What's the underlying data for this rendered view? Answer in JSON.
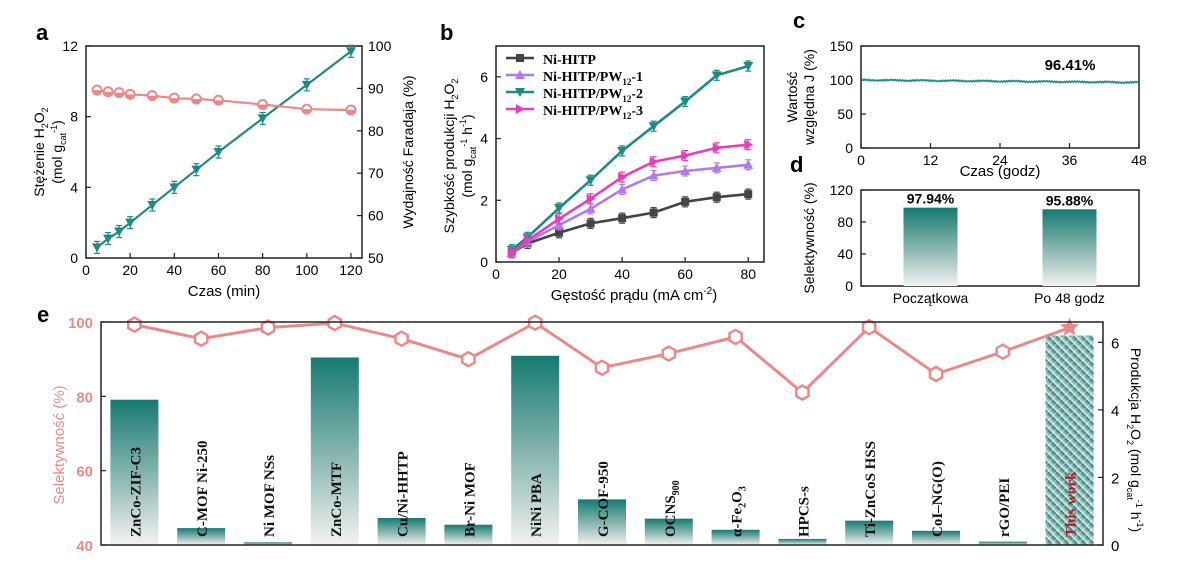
{
  "colors": {
    "teal": "#1e8a82",
    "pink": "#e88a8a",
    "gray": "#444444",
    "purple": "#b07ae8",
    "magenta": "#e63fb8",
    "darkred": "#b0202a"
  },
  "panels": {
    "a": "a",
    "b": "b",
    "c": "c",
    "d": "d",
    "e": "e"
  },
  "chart_data": [
    {
      "id": "a",
      "type": "line",
      "xlabel": "Czas (min)",
      "ylabel_line1": "Stężenie H",
      "ylabel_line2": "(mol g",
      "y2label": "Wydajność Faradaja (%)",
      "xlim": [
        0,
        125
      ],
      "ylim": [
        0,
        12
      ],
      "y2lim": [
        50,
        100
      ],
      "xticks": [
        0,
        20,
        40,
        60,
        80,
        100,
        120
      ],
      "yticks": [
        0,
        4,
        8,
        12
      ],
      "y2ticks": [
        50,
        60,
        70,
        80,
        90,
        100
      ],
      "series": [
        {
          "axis": "left",
          "color": "#1e8a82",
          "x": [
            5,
            10,
            15,
            20,
            30,
            40,
            50,
            60,
            80,
            100,
            120
          ],
          "y": [
            0.6,
            1.1,
            1.5,
            2.0,
            3.0,
            4.0,
            5.0,
            6.0,
            7.9,
            9.8,
            11.7
          ]
        },
        {
          "axis": "right",
          "color": "#e88a8a",
          "x": [
            5,
            10,
            15,
            20,
            30,
            40,
            50,
            60,
            80,
            100,
            120
          ],
          "y": [
            89.6,
            89.2,
            89.0,
            88.6,
            88.3,
            87.7,
            87.5,
            87.2,
            86.2,
            85.1,
            84.9
          ]
        }
      ]
    },
    {
      "id": "b",
      "type": "line",
      "xlabel": "Gęstość prądu (mA cm",
      "xlabel_sup": "-2",
      "ylabel_line1": "Szybkość produkcji H",
      "ylabel_line2": "(mol g",
      "xlim": [
        0,
        85
      ],
      "ylim": [
        0,
        7
      ],
      "xticks": [
        0,
        20,
        40,
        60,
        80
      ],
      "yticks": [
        0,
        2,
        4,
        6
      ],
      "x": [
        5,
        10,
        20,
        30,
        40,
        50,
        60,
        70,
        80
      ],
      "series": [
        {
          "name": "Ni-HITP",
          "color": "#444444",
          "marker": "square",
          "values": [
            0.3,
            0.6,
            0.95,
            1.25,
            1.42,
            1.6,
            1.95,
            2.1,
            2.2
          ]
        },
        {
          "name": "Ni-HITP/PW",
          "sub": "12",
          "suffix": "-1",
          "color": "#b07ae8",
          "marker": "triangle-up",
          "values": [
            0.3,
            0.65,
            1.2,
            1.72,
            2.35,
            2.8,
            2.95,
            3.05,
            3.15
          ]
        },
        {
          "name": "Ni-HITP/PW",
          "sub": "12",
          "suffix": "-2",
          "color": "#1e8a82",
          "marker": "triangle-down",
          "values": [
            0.4,
            0.8,
            1.75,
            2.65,
            3.6,
            4.4,
            5.2,
            6.05,
            6.35
          ]
        },
        {
          "name": "Ni-HITP/PW",
          "sub": "12",
          "suffix": "-3",
          "color": "#e63fb8",
          "marker": "triangle-right",
          "values": [
            0.3,
            0.7,
            1.4,
            2.05,
            2.75,
            3.25,
            3.45,
            3.7,
            3.8
          ]
        }
      ]
    },
    {
      "id": "c",
      "type": "line",
      "xlabel": "Czas (godz)",
      "ylabel_line1": "Wartość",
      "ylabel_line2": "względna J (%)",
      "annotation": "96.41%",
      "xlim": [
        0,
        48
      ],
      "ylim": [
        0,
        150
      ],
      "xticks": [
        0,
        12,
        24,
        36,
        48
      ],
      "yticks": [
        0,
        50,
        100,
        150
      ],
      "series": [
        {
          "color": "#1e8a82",
          "start": 100,
          "end": 96.41
        }
      ]
    },
    {
      "id": "d",
      "type": "bar",
      "ylabel": "Selektywność (%)",
      "categories": [
        "Początkowa",
        "Po 48 godz"
      ],
      "values": [
        97.94,
        95.88
      ],
      "labels": [
        "97.94%",
        "95.88%"
      ],
      "ylim": [
        0,
        120
      ],
      "yticks": [
        0,
        40,
        80,
        120
      ]
    },
    {
      "id": "e",
      "type": "bar",
      "ylabel": "Selektywność (%)",
      "y2label_pre": "Produkcja H",
      "y2label_mid": "O",
      "y2label_post": " (mol g",
      "ylim": [
        40,
        100
      ],
      "yticks": [
        40,
        60,
        80,
        100
      ],
      "y2lim": [
        0,
        6.6
      ],
      "y2ticks": [
        0,
        2,
        4,
        6
      ],
      "categories": [
        {
          "pre": "ZnCo-ZIF-C3"
        },
        {
          "pre": "C-MOF Ni-250"
        },
        {
          "pre": "Ni MOF NSs"
        },
        {
          "pre": "ZnCo-MTF"
        },
        {
          "pre": "Cu/Ni-HHTP"
        },
        {
          "pre": "Br-Ni MOF"
        },
        {
          "pre": "NiNi PBA"
        },
        {
          "pre": "G-COF-950"
        },
        {
          "pre": "OCNS",
          "sub": "900"
        },
        {
          "pre": "α-Fe",
          "sub": "2",
          "post": "O",
          "sub2": "3"
        },
        {
          "pre": "HPCS-s"
        },
        {
          "pre": "Ti-ZnCoS HSS"
        },
        {
          "pre": "CoI–NG(O)"
        },
        {
          "pre": "rGO/PEI"
        },
        {
          "pre": "This work",
          "highlight": true
        }
      ],
      "production": [
        4.3,
        0.5,
        0.08,
        5.55,
        0.8,
        0.6,
        5.6,
        1.35,
        0.78,
        0.45,
        0.18,
        0.72,
        0.42,
        0.1,
        6.2
      ],
      "selectivity": [
        99.3,
        95.5,
        98.5,
        99.7,
        95.5,
        90.0,
        99.8,
        87.7,
        91.5,
        96.0,
        81.0,
        98.6,
        86.0,
        92.0,
        98.5
      ]
    }
  ]
}
